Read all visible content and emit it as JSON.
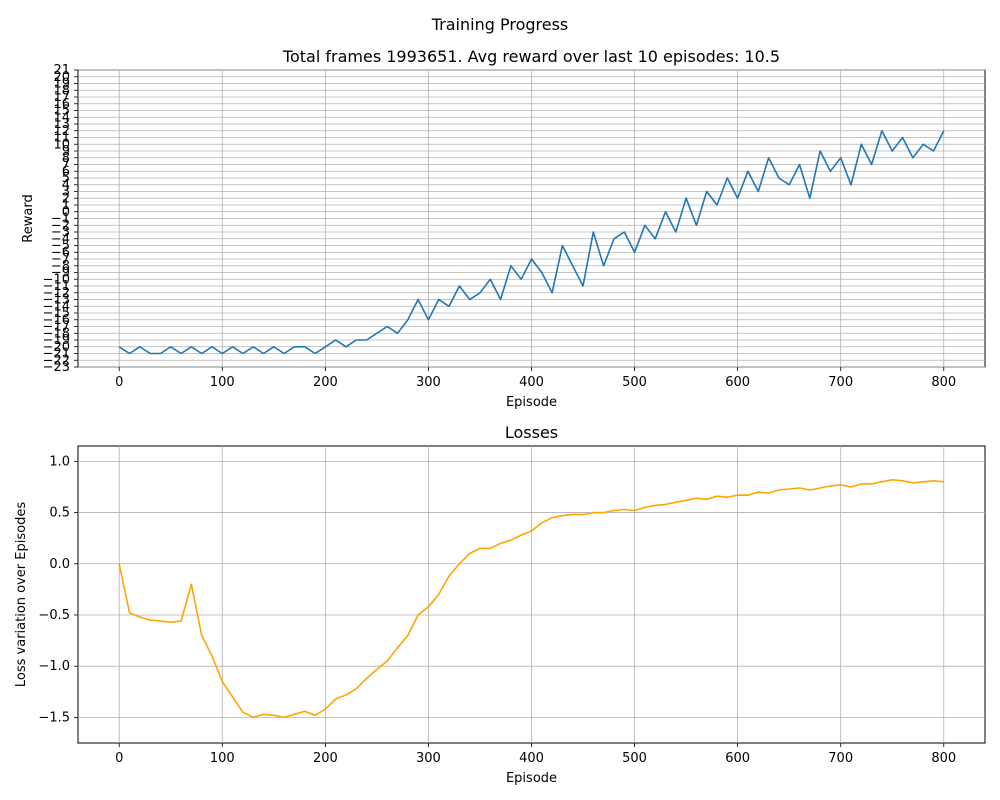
{
  "suptitle": "Training Progress",
  "colors": {
    "reward": "#1f77b4",
    "loss": "#ffa500",
    "grid": "#b0b0b0",
    "axis": "#000000"
  },
  "chart_data": [
    {
      "type": "line",
      "title": "Total frames 1993651. Avg reward over last 10 episodes: 10.5",
      "xlabel": "Episode",
      "ylabel": "Reward",
      "xlim": [
        -40,
        840
      ],
      "ylim": [
        -23,
        21
      ],
      "grid": true,
      "x_ticks": [
        0,
        100,
        200,
        300,
        400,
        500,
        600,
        700,
        800
      ],
      "y_ticks": [
        -23,
        -22,
        -21,
        -20,
        -19,
        -18,
        -17,
        -16,
        -15,
        -14,
        -13,
        -12,
        -11,
        -10,
        -9,
        -8,
        -7,
        -6,
        -5,
        -4,
        -3,
        -2,
        -1,
        0,
        1,
        2,
        3,
        4,
        5,
        6,
        7,
        8,
        9,
        10,
        11,
        12,
        13,
        14,
        15,
        16,
        17,
        18,
        19,
        20,
        21
      ],
      "series": [
        {
          "x_start": 0,
          "x_step": 10,
          "values": [
            -20,
            -21,
            -20,
            -21,
            -21,
            -20,
            -21,
            -20,
            -21,
            -20,
            -21,
            -20,
            -21,
            -20,
            -21,
            -20,
            -21,
            -20,
            -20,
            -21,
            -20,
            -19,
            -20,
            -19,
            -19,
            -18,
            -17,
            -18,
            -16,
            -13,
            -16,
            -13,
            -14,
            -11,
            -13,
            -12,
            -10,
            -13,
            -8,
            -10,
            -7,
            -9,
            -12,
            -5,
            -8,
            -11,
            -3,
            -8,
            -4,
            -3,
            -6,
            -2,
            -4,
            0,
            -3,
            2,
            -2,
            3,
            1,
            5,
            2,
            6,
            3,
            8,
            5,
            4,
            7,
            2,
            9,
            6,
            8,
            4,
            10,
            7,
            12,
            9,
            11,
            8,
            10,
            9,
            12
          ]
        }
      ]
    },
    {
      "type": "line",
      "title": "Losses",
      "xlabel": "Episode",
      "ylabel": "Loss variation over Episodes",
      "xlim": [
        -40,
        840
      ],
      "ylim": [
        -1.75,
        1.15
      ],
      "grid": true,
      "x_ticks": [
        0,
        100,
        200,
        300,
        400,
        500,
        600,
        700,
        800
      ],
      "y_ticks": [
        -1.5,
        -1.0,
        -0.5,
        0.0,
        0.5,
        1.0
      ],
      "y_tick_labels": [
        "−1.5",
        "−1.0",
        "−0.5",
        "0.0",
        "0.5",
        "1.0"
      ],
      "series": [
        {
          "x_start": 0,
          "x_step": 10,
          "values": [
            0.0,
            -0.48,
            -0.52,
            -0.55,
            -0.56,
            -0.57,
            -0.56,
            -0.2,
            -0.7,
            -0.9,
            -1.15,
            -1.3,
            -1.45,
            -1.5,
            -1.47,
            -1.48,
            -1.5,
            -1.47,
            -1.44,
            -1.48,
            -1.42,
            -1.32,
            -1.28,
            -1.22,
            -1.12,
            -1.03,
            -0.95,
            -0.82,
            -0.7,
            -0.5,
            -0.42,
            -0.3,
            -0.12,
            0.0,
            0.1,
            0.15,
            0.15,
            0.2,
            0.23,
            0.28,
            0.32,
            0.4,
            0.45,
            0.47,
            0.48,
            0.48,
            0.5,
            0.5,
            0.52,
            0.53,
            0.52,
            0.55,
            0.57,
            0.58,
            0.6,
            0.62,
            0.64,
            0.63,
            0.66,
            0.65,
            0.67,
            0.67,
            0.7,
            0.69,
            0.72,
            0.73,
            0.74,
            0.72,
            0.74,
            0.76,
            0.77,
            0.75,
            0.78,
            0.78,
            0.8,
            0.82,
            0.81,
            0.79,
            0.8,
            0.81,
            0.8
          ]
        }
      ]
    }
  ]
}
